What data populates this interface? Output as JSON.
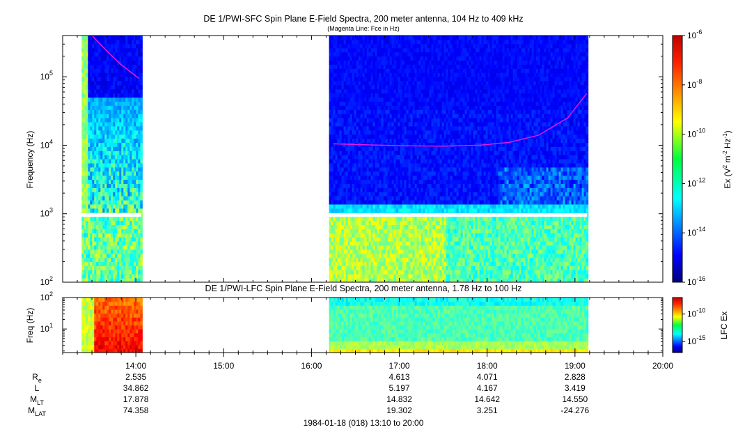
{
  "chart_data": [
    {
      "type": "heatmap",
      "title": "DE 1/PWI-SFC  Spin Plane E-Field Spectra, 200 meter antenna, 104 Hz to 409 kHz",
      "subtitle": "(Magenta Line: Fce in Hz)",
      "ylabel": "Frequency (Hz)",
      "yscale": "log",
      "ylim": [
        100,
        400000
      ],
      "yticks": [
        {
          "value": 100,
          "mantissa": "10",
          "exp": "2"
        },
        {
          "value": 1000,
          "mantissa": "10",
          "exp": "3"
        },
        {
          "value": 10000,
          "mantissa": "10",
          "exp": "4"
        },
        {
          "value": 100000,
          "mantissa": "10",
          "exp": "5"
        }
      ],
      "data_intervals": [
        {
          "start": "13:23",
          "end": "14:03"
        },
        {
          "start": "16:12",
          "end": "19:08"
        }
      ],
      "gap_band_hz": [
        900,
        1020
      ],
      "fce_line": {
        "name": "Fce in Hz",
        "color": "#e619e6",
        "segments": [
          [
            {
              "t": "13:30",
              "f": 400000
            },
            {
              "t": "13:40",
              "f": 240000
            },
            {
              "t": "13:50",
              "f": 150000
            },
            {
              "t": "14:02",
              "f": 95000
            }
          ],
          [
            {
              "t": "16:15",
              "f": 10500
            },
            {
              "t": "16:40",
              "f": 10100
            },
            {
              "t": "17:05",
              "f": 9800
            },
            {
              "t": "17:30",
              "f": 9700
            },
            {
              "t": "17:55",
              "f": 10000
            },
            {
              "t": "18:15",
              "f": 11000
            },
            {
              "t": "18:35",
              "f": 14000
            },
            {
              "t": "18:55",
              "f": 25000
            },
            {
              "t": "19:08",
              "f": 57000
            }
          ]
        ]
      },
      "colorbar": {
        "label": "Ex (V² m⁻² Hz⁻¹)",
        "label_base": "Ex (V",
        "label_sq": "2",
        "label_mid": " m",
        "label_neg2": "-2",
        "label_hz": " Hz",
        "label_neg1": "-1",
        "label_close": ")",
        "scale": "log",
        "range": [
          1e-16,
          1e-06
        ],
        "ticks": [
          {
            "value": -6,
            "mantissa": "10",
            "exp": "-6"
          },
          {
            "value": -8,
            "mantissa": "10",
            "exp": "-8"
          },
          {
            "value": -10,
            "mantissa": "10",
            "exp": "-10"
          },
          {
            "value": -12,
            "mantissa": "10",
            "exp": "-12"
          },
          {
            "value": -14,
            "mantissa": "10",
            "exp": "-14"
          },
          {
            "value": -16,
            "mantissa": "10",
            "exp": "-16"
          }
        ]
      }
    },
    {
      "type": "heatmap",
      "title": "DE 1/PWI-LFC  Spin Plane E-Field Spectra, 200 meter antenna, 1.78 Hz to 100 Hz",
      "ylabel": "Freq (Hz)",
      "yscale": "log",
      "ylim": [
        1.78,
        100
      ],
      "yticks": [
        {
          "value": 10,
          "mantissa": "10",
          "exp": "1"
        },
        {
          "value": 100,
          "mantissa": "10",
          "exp": "2"
        }
      ],
      "data_intervals": [
        {
          "start": "13:23",
          "end": "14:03"
        },
        {
          "start": "16:12",
          "end": "19:08"
        }
      ],
      "colorbar": {
        "label": "LFC Ex",
        "scale": "log",
        "ticks": [
          {
            "value": -10,
            "mantissa": "10",
            "exp": "-10"
          },
          {
            "value": -15,
            "mantissa": "10",
            "exp": "-15"
          }
        ]
      }
    }
  ],
  "time_axis": {
    "range": [
      "13:10",
      "20:00"
    ],
    "major_ticks": [
      "14:00",
      "15:00",
      "16:00",
      "17:00",
      "18:00",
      "19:00",
      "20:00"
    ],
    "minor_interval_min": 10
  },
  "ephemeris": {
    "columns": [
      "14:00",
      "17:00",
      "18:00",
      "19:00"
    ],
    "rows": [
      {
        "label": "R",
        "sub": "e",
        "values": [
          "2.535",
          "4.613",
          "4.071",
          "2.828"
        ]
      },
      {
        "label": "L",
        "sub": "",
        "values": [
          "34.862",
          "5.197",
          "4.167",
          "3.419"
        ]
      },
      {
        "label": "M",
        "sub": "LT",
        "values": [
          "17.878",
          "14.832",
          "14.642",
          "14.550"
        ]
      },
      {
        "label": "M",
        "sub": "LAT",
        "values": [
          "74.358",
          "19.302",
          "3.251",
          "-24.276"
        ]
      }
    ]
  },
  "footer": "1984-01-18 (018) 13:10 to 20:00"
}
